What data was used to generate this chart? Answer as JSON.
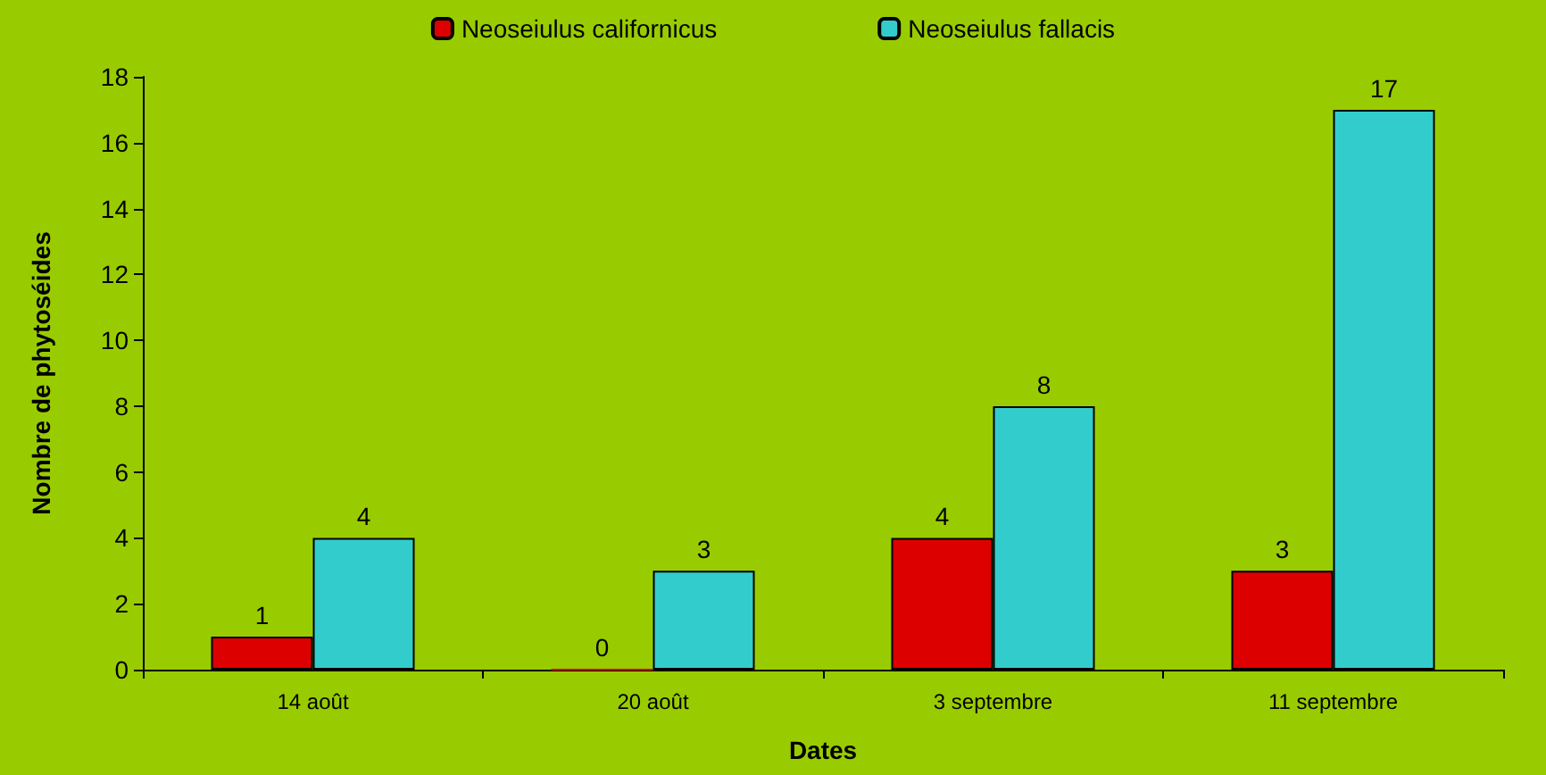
{
  "chart_data": {
    "type": "bar",
    "xlabel": "Dates",
    "ylabel": "Nombre de phytoséides",
    "categories": [
      "14 août",
      "20 août",
      "3 septembre",
      "11 septembre"
    ],
    "series": [
      {
        "name": "Neoseiulus californicus",
        "color": "#dd0000",
        "values": [
          1,
          0,
          4,
          3
        ]
      },
      {
        "name": "Neoseiulus fallacis",
        "color": "#33cccc",
        "values": [
          4,
          3,
          8,
          17
        ]
      }
    ],
    "ylim": [
      0,
      18
    ],
    "yticks": [
      0,
      2,
      4,
      6,
      8,
      10,
      12,
      14,
      16,
      18
    ],
    "grid": false,
    "legend": "top",
    "data_labels": true
  }
}
